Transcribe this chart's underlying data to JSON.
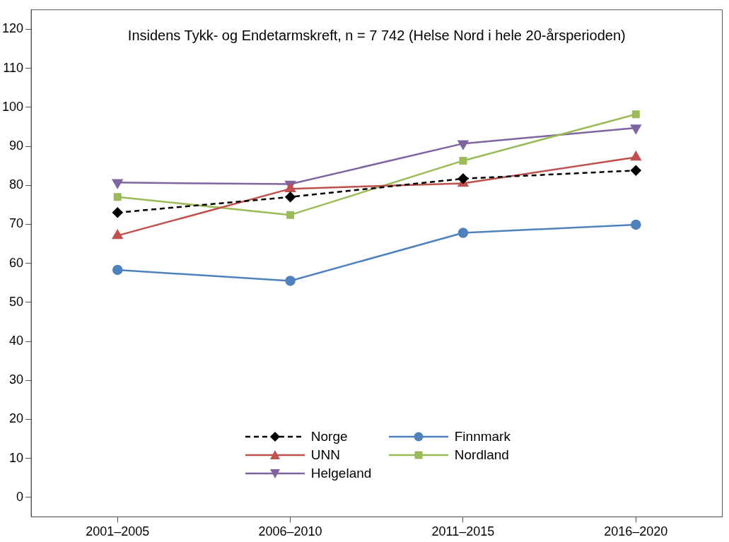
{
  "chart_data": {
    "type": "line",
    "title": "Insidens Tykk- og Endetarmskreft, n = 7 742 (Helse Nord i hele 20-årsperioden)",
    "categories": [
      "2001–2005",
      "2006–2010",
      "2011–2015",
      "2016–2020"
    ],
    "ylim": [
      -5,
      125
    ],
    "yticks": [
      0,
      10,
      20,
      30,
      40,
      50,
      60,
      70,
      80,
      90,
      100,
      110,
      120
    ],
    "grid": false,
    "legend": "bottom",
    "series": [
      {
        "name": "Norge",
        "color": "#000000",
        "marker": "diamond",
        "line_style": "dashed",
        "values": [
          73,
          77,
          81.7,
          83.8
        ]
      },
      {
        "name": "Finnmark",
        "color": "#4f81bd",
        "marker": "circle",
        "line_style": "solid",
        "values": [
          58.3,
          55.5,
          67.8,
          69.9
        ]
      },
      {
        "name": "UNN",
        "color": "#c0504d",
        "marker": "triangle",
        "line_style": "solid",
        "values": [
          67.1,
          79.1,
          80.5,
          87.2
        ]
      },
      {
        "name": "Nordland",
        "color": "#9bbb59",
        "marker": "square",
        "line_style": "solid",
        "values": [
          77,
          72.4,
          86.3,
          98.2
        ]
      },
      {
        "name": "Helgeland",
        "color": "#8064a2",
        "marker": "triangle-down",
        "line_style": "solid",
        "values": [
          80.7,
          80.3,
          90.7,
          94.7
        ]
      }
    ]
  }
}
